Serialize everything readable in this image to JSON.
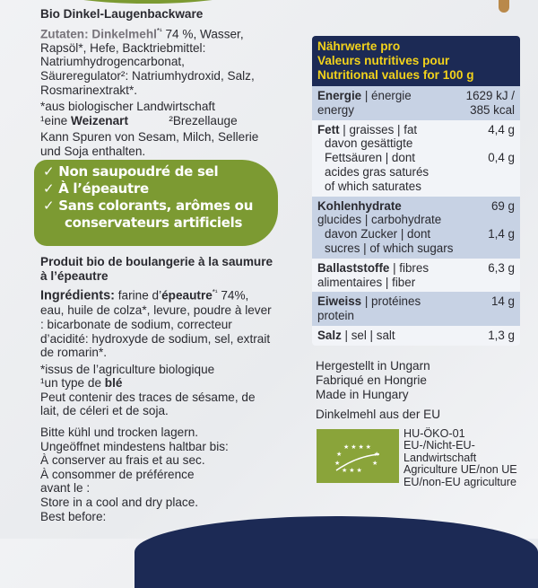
{
  "german": {
    "title": "Bio Dinkel-Laugenbackware",
    "zutaten_label": "Zutaten: Dinkelmehl",
    "zutaten_sup": "*¹",
    "zutaten_text": " 74 %, Wasser, Rapsöl*, Hefe, Backtriebmittel: Natriumhydrogencarbonat, Säureregulator²: Natriumhydroxid, Salz, Rosmarinextrakt*.",
    "footnote1": "*aus biologischer Landwirtschaft",
    "footnote2_pre": "¹eine ",
    "footnote2_bold": "Weizenart",
    "footnote3": "²Brezellauge",
    "allergens": "Kann Spuren von Sesam, Milch, Sellerie und Soja enthalten."
  },
  "banner": {
    "color": "#7c9a32",
    "items": [
      "✓ Non saupoudré de sel",
      "✓ À l’épeautre",
      "✓ Sans colorants, arômes ou"
    ],
    "item3_cont": "conservateurs artificiels"
  },
  "french": {
    "title": "Produit bio de boulangerie à la saumure à l’épeautre",
    "ing_label": "Ingrédients:",
    "ing_pre": " farine d’",
    "ing_bold": "épeautre",
    "ing_sup": "*¹",
    "ing_text": " 74%, eau, huile de colza*, levure, poudre à lever : bicarbonate de sodium, correcteur d’acidité: hydroxyde de sodium, sel, extrait de romarin*.",
    "footnote1": "*issus de l’agriculture biologique",
    "footnote2_pre": "¹un type de ",
    "footnote2_bold": "blé",
    "allergens": "Peut contenir des traces de sésame, de lait, de céleri et de soja."
  },
  "storage": [
    "Bitte kühl und trocken lagern.",
    "Ungeöffnet mindestens haltbar bis:",
    "À conserver au frais et au sec.",
    "À consommer de préférence",
    "avant le :",
    "Store in a cool and dry place.",
    "Best before:"
  ],
  "nutrition": {
    "header": [
      "Nährwerte pro",
      "Valeurs nutritives pour",
      "Nutritional values for 100 g"
    ],
    "energy": {
      "bold": "Energie",
      "rest": " | énergie",
      "line2": "energy",
      "v1": "1629 kJ /",
      "v2": "385 kcal"
    },
    "fat": {
      "bold": "Fett",
      "rest": " | graisses | fat",
      "value": "4,4 g",
      "sub": [
        "davon gesättigte",
        "Fettsäuren | dont",
        "acides gras saturés",
        "of which saturates"
      ],
      "sub_value": "0,4 g"
    },
    "carbs": {
      "bold": "Kohlenhydrate",
      "line2": "glucides | carbohydrate",
      "value": "69 g",
      "sub": [
        "davon Zucker | dont",
        "sucres | of which sugars"
      ],
      "sub_value": "1,4 g"
    },
    "fibre": {
      "bold": "Ballaststoffe",
      "rest": " | fibres",
      "line2": "alimentaires | fiber",
      "value": "6,3 g"
    },
    "protein": {
      "bold": "Eiweiss",
      "rest": " | protéines",
      "line2": "protein",
      "value": "14 g"
    },
    "salt": {
      "bold": "Salz",
      "rest": " | sel | salt",
      "value": "1,3 g"
    }
  },
  "origin": [
    "Hergestellt in Ungarn",
    "Fabriqué en Hongrie",
    "Made in Hungary"
  ],
  "flour_origin": "Dinkelmehl aus der EU",
  "eu_organic": {
    "code": "HU-ÖKO-01",
    "lines": [
      "EU-/Nicht-EU-",
      "Landwirtschaft",
      "Agriculture UE/non UE",
      "EU/non-EU agriculture"
    ],
    "icon": "eu-organic-leaf-logo"
  }
}
